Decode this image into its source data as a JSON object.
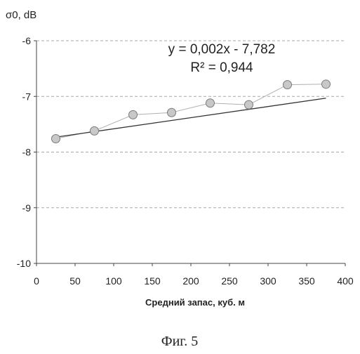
{
  "chart_data": {
    "type": "scatter",
    "ylabel": "σ0, dB",
    "xlabel": "Средний запас, куб. м",
    "xlim": [
      0,
      400
    ],
    "ylim": [
      -10,
      -6
    ],
    "x_ticks": [
      "0",
      "50",
      "100",
      "150",
      "200",
      "250",
      "300",
      "350",
      "400"
    ],
    "y_ticks": [
      "-6",
      "-7",
      "-8",
      "-9",
      "-10"
    ],
    "grid": "horizontal dashed",
    "series": [
      {
        "x": [
          25,
          75,
          125,
          175,
          225,
          275,
          325,
          375
        ],
        "y": [
          -7.76,
          -7.62,
          -7.33,
          -7.29,
          -7.12,
          -7.15,
          -6.79,
          -6.78
        ]
      }
    ],
    "trendline": {
      "type": "linear",
      "slope": 0.002,
      "intercept": -7.782,
      "x_range": [
        25,
        375
      ]
    },
    "annotations": {
      "equation": "y = 0,002x - 7,782",
      "r2": "R² = 0,944"
    },
    "colors": {
      "marker_fill": "#c8c8c8",
      "marker_stroke": "#7a7a7a",
      "trend_line": "#333333",
      "connector_line": "#b0b0b0",
      "grid": "#a8a8a8"
    }
  },
  "caption": "Фиг. 5"
}
